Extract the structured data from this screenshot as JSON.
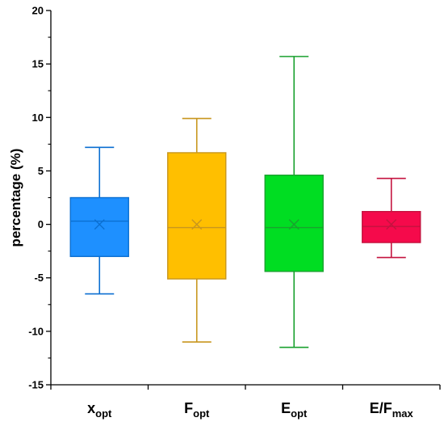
{
  "chart_data": {
    "type": "box",
    "ylabel": "percentage (%)",
    "ylim": [
      -15,
      20
    ],
    "yticks": [
      -15,
      -10,
      -5,
      0,
      5,
      10,
      15,
      20
    ],
    "grid": false,
    "categories": [
      {
        "main": "x",
        "sub": "opt"
      },
      {
        "main": "F",
        "sub": "opt"
      },
      {
        "main": "E",
        "sub": "opt"
      },
      {
        "main": "E/F",
        "sub": "max"
      }
    ],
    "boxes": [
      {
        "min": -6.5,
        "q1": -3.0,
        "median": 0.3,
        "q3": 2.5,
        "max": 7.2,
        "mean": 0.0,
        "fill": "#1e90ff",
        "stroke": "#0b6fd1"
      },
      {
        "min": -11.0,
        "q1": -5.1,
        "median": -0.3,
        "q3": 6.7,
        "max": 9.9,
        "mean": 0.0,
        "fill": "#ffbf00",
        "stroke": "#c8961e"
      },
      {
        "min": -11.5,
        "q1": -4.4,
        "median": -0.3,
        "q3": 4.6,
        "max": 15.7,
        "mean": 0.0,
        "fill": "#00dd22",
        "stroke": "#1aa12f"
      },
      {
        "min": -3.1,
        "q1": -1.7,
        "median": -0.2,
        "q3": 1.2,
        "max": 4.3,
        "mean": 0.0,
        "fill": "#f50a4b",
        "stroke": "#c4133f"
      }
    ]
  }
}
